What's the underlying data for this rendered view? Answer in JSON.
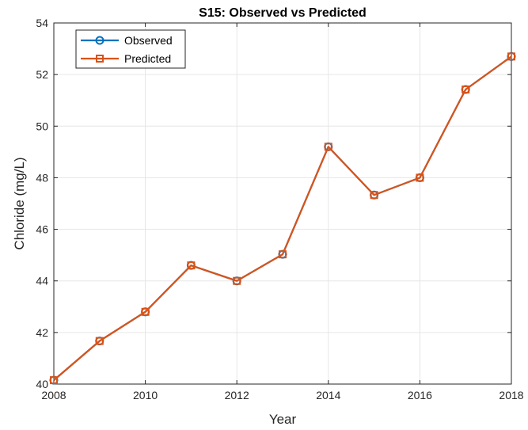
{
  "chart_data": {
    "type": "line",
    "title": "S15: Observed vs Predicted",
    "xlabel": "Year",
    "ylabel": "Chloride (mg/L)",
    "xlim": [
      2008,
      2018
    ],
    "ylim": [
      40,
      54
    ],
    "xticks": [
      2008,
      2010,
      2012,
      2014,
      2016,
      2018
    ],
    "yticks": [
      40,
      42,
      44,
      46,
      48,
      50,
      52,
      54
    ],
    "grid": true,
    "legend_position": "top-left",
    "x": [
      2008,
      2009,
      2010,
      2011,
      2012,
      2013,
      2014,
      2015,
      2016,
      2017,
      2018
    ],
    "series": [
      {
        "name": "Observed",
        "marker": "circle",
        "color": "#0072BD",
        "values": [
          40.15,
          41.67,
          42.8,
          44.6,
          44.0,
          45.03,
          49.2,
          47.33,
          48.0,
          51.42,
          52.7
        ]
      },
      {
        "name": "Predicted",
        "marker": "square",
        "color": "#D95319",
        "values": [
          40.15,
          41.67,
          42.8,
          44.6,
          44.0,
          45.03,
          49.2,
          47.33,
          48.0,
          51.42,
          52.7
        ]
      }
    ]
  }
}
